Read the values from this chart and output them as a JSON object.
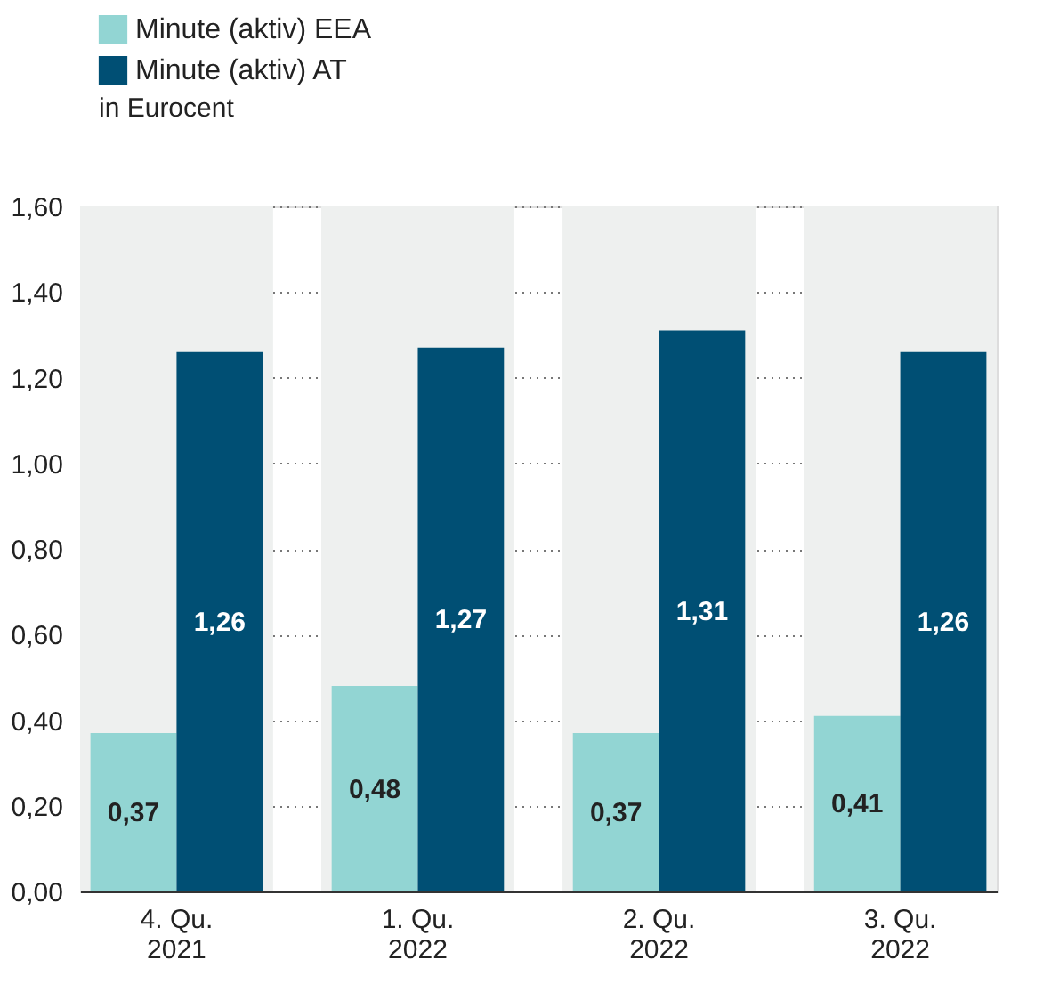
{
  "chart_data": {
    "type": "bar",
    "categories": [
      "4. Qu.\n2021",
      "1. Qu.\n2022",
      "2. Qu.\n2022",
      "3. Qu.\n2022"
    ],
    "series": [
      {
        "name": "Minute (aktiv) EEA",
        "color": "#92d5d3",
        "values": [
          0.37,
          0.48,
          0.37,
          0.41
        ],
        "value_labels": [
          "0,37",
          "0,48",
          "0,37",
          "0,41"
        ]
      },
      {
        "name": "Minute (aktiv) AT",
        "color": "#004f74",
        "values": [
          1.26,
          1.27,
          1.31,
          1.26
        ],
        "value_labels": [
          "1,26",
          "1,27",
          "1,31",
          "1,26"
        ]
      }
    ],
    "ylabel": "in Eurocent",
    "ylim": [
      0,
      1.6
    ],
    "yticks": [
      {
        "value": 0,
        "label": "0,00"
      },
      {
        "value": 0.2,
        "label": "0,20"
      },
      {
        "value": 0.4,
        "label": "0,40"
      },
      {
        "value": 0.6,
        "label": "0,60"
      },
      {
        "value": 0.8,
        "label": "0,80"
      },
      {
        "value": 1.0,
        "label": "1,00"
      },
      {
        "value": 1.2,
        "label": "1,20"
      },
      {
        "value": 1.4,
        "label": "1,40"
      },
      {
        "value": 1.6,
        "label": "1,60"
      }
    ],
    "bands": [
      {
        "axis": "x",
        "from": "4. Qu.\n2021",
        "to": "4. Qu.\n2021",
        "color": "#eef0ef"
      },
      {
        "axis": "x",
        "from": "1. Qu.\n2022",
        "to": "1. Qu.\n2022",
        "color": "#eef0ef"
      },
      {
        "axis": "x",
        "from": "2. Qu.\n2022",
        "to": "2. Qu.\n2022",
        "color": "#eef0ef"
      },
      {
        "axis": "x",
        "from": "3. Qu.\n2022",
        "to": "3. Qu.\n2022",
        "color": "#eef0ef"
      }
    ],
    "grid": "y",
    "legend": "top left"
  }
}
